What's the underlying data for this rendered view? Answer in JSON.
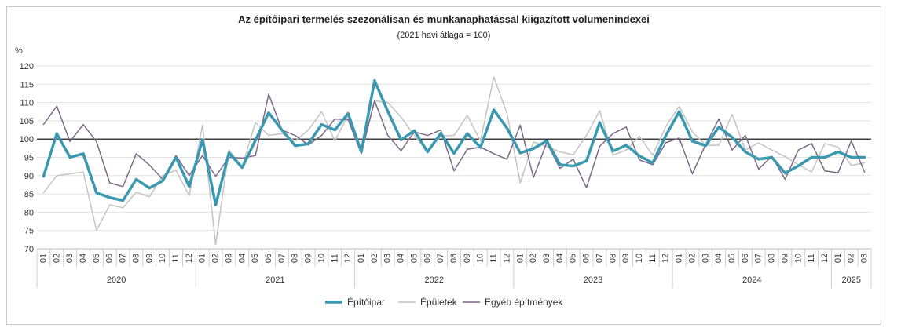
{
  "chart_data": {
    "type": "line",
    "title": "Az építőipari termelés szezonálisan és munkanaphatással kiigazított volumenindexei",
    "subtitle": "(2021 havi átlaga = 100)",
    "ylabel": "%",
    "ylim": [
      70,
      120
    ],
    "yticks": [
      70,
      75,
      80,
      85,
      90,
      95,
      100,
      105,
      110,
      115,
      120
    ],
    "reference_line": 100,
    "months": [
      "01",
      "02",
      "03",
      "04",
      "05",
      "06",
      "07",
      "08",
      "09",
      "10",
      "11",
      "12",
      "01",
      "02",
      "03",
      "04",
      "05",
      "06",
      "07",
      "08",
      "09",
      "10",
      "11",
      "12",
      "01",
      "02",
      "03",
      "04",
      "05",
      "06",
      "07",
      "08",
      "09",
      "10",
      "11",
      "12",
      "01",
      "02",
      "03",
      "04",
      "05",
      "06",
      "07",
      "08",
      "09",
      "10",
      "11",
      "12",
      "01",
      "02",
      "03",
      "04",
      "05",
      "06",
      "07",
      "08",
      "09",
      "10",
      "11",
      "12",
      "01",
      "02",
      "03"
    ],
    "years": [
      {
        "label": "2020",
        "count": 12
      },
      {
        "label": "2021",
        "count": 12
      },
      {
        "label": "2022",
        "count": 12
      },
      {
        "label": "2023",
        "count": 12
      },
      {
        "label": "2024",
        "count": 12
      },
      {
        "label": "2025",
        "count": 3
      }
    ],
    "series": [
      {
        "name": "Építőipar",
        "color": "#3a98b0",
        "values": [
          89.8,
          101.5,
          95.0,
          96.0,
          85.3,
          84.0,
          83.2,
          89.0,
          86.6,
          88.6,
          95.0,
          87.0,
          99.8,
          82.0,
          96.2,
          92.2,
          99.7,
          107.2,
          102.5,
          98.2,
          98.7,
          104.0,
          102.5,
          107.0,
          96.5,
          116.0,
          107.6,
          99.8,
          102.3,
          96.5,
          101.6,
          96.1,
          101.5,
          97.7,
          108.0,
          103.0,
          96.2,
          97.4,
          99.5,
          93.0,
          92.6,
          94.0,
          104.5,
          96.7,
          98.3,
          95.4,
          93.5,
          101.0,
          107.5,
          99.4,
          98.2,
          103.3,
          100.5,
          96.5,
          94.5,
          95.0,
          90.7,
          92.7,
          95.0,
          95.0,
          96.5,
          95.0,
          95.0
        ]
      },
      {
        "name": "Épületek",
        "color": "#c4c4c4",
        "values": [
          85.3,
          90.0,
          90.5,
          91.0,
          75.0,
          82.0,
          81.2,
          85.5,
          84.2,
          90.0,
          91.5,
          84.5,
          103.8,
          71.2,
          97.0,
          92.5,
          104.5,
          101.0,
          101.5,
          99.5,
          102.5,
          107.5,
          99.5,
          106.5,
          97.0,
          110.5,
          110.0,
          106.0,
          101.0,
          96.5,
          100.8,
          101.0,
          106.5,
          99.5,
          117.0,
          107.0,
          88.0,
          99.2,
          98.0,
          96.5,
          95.7,
          101.0,
          107.8,
          95.6,
          97.0,
          100.8,
          95.6,
          103.5,
          109.0,
          102.0,
          98.3,
          98.3,
          106.8,
          97.0,
          99.0,
          97.0,
          95.2,
          93.0,
          91.0,
          98.8,
          97.8,
          92.8,
          93.5
        ]
      },
      {
        "name": "Egyéb építmények",
        "color": "#7c6a87",
        "values": [
          104.0,
          109.0,
          99.3,
          104.0,
          99.3,
          88.0,
          87.0,
          96.0,
          92.9,
          89.0,
          95.5,
          90.0,
          95.5,
          89.8,
          95.0,
          94.8,
          95.5,
          112.3,
          102.5,
          101.0,
          98.4,
          101.0,
          105.5,
          105.3,
          96.0,
          110.5,
          101.0,
          96.8,
          102.0,
          101.0,
          102.5,
          91.3,
          97.2,
          97.8,
          96.0,
          94.5,
          103.8,
          89.5,
          99.0,
          92.0,
          94.5,
          86.7,
          98.0,
          101.5,
          103.3,
          94.3,
          93.0,
          99.0,
          100.3,
          90.5,
          98.5,
          105.5,
          97.0,
          101.0,
          91.8,
          95.3,
          89.0,
          97.0,
          98.8,
          91.3,
          90.8,
          99.5,
          91.0
        ]
      }
    ],
    "legend_position": "bottom-center"
  }
}
